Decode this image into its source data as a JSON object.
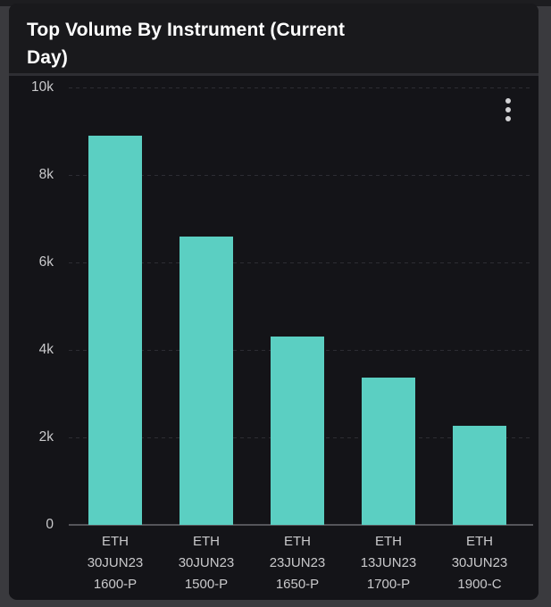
{
  "panel": {
    "title": "Top Volume By Instrument (Current Day)"
  },
  "icons": {
    "menu": "kebab-menu-icon"
  },
  "chart_data": {
    "type": "bar",
    "title": "Top Volume By Instrument (Current Day)",
    "categories": [
      "ETH 30JUN23 1600-P",
      "ETH 30JUN23 1500-P",
      "ETH 23JUN23 1650-P",
      "ETH 13JUN23 1700-P",
      "ETH 30JUN23 1900-C"
    ],
    "category_lines": [
      [
        "ETH",
        "30JUN23",
        "1600-P"
      ],
      [
        "ETH",
        "30JUN23",
        "1500-P"
      ],
      [
        "ETH",
        "23JUN23",
        "1650-P"
      ],
      [
        "ETH",
        "13JUN23",
        "1700-P"
      ],
      [
        "ETH",
        "30JUN23",
        "1900-C"
      ]
    ],
    "values": [
      8900,
      6600,
      4310,
      3370,
      2270
    ],
    "xlabel": "",
    "ylabel": "",
    "ylim": [
      0,
      10000
    ],
    "yticks": [
      10000,
      8000,
      6000,
      4000,
      2000,
      0
    ],
    "ytick_labels": [
      "10k",
      "8k",
      "6k",
      "4k",
      "2k",
      "0"
    ],
    "grid": "horizontal-dashed",
    "legend": false,
    "colors": {
      "bar": "#5bcfc2",
      "grid": "#2d2d33",
      "axis": "#55555a",
      "tick_text": "#c9c9cb",
      "title_text": "#ffffff",
      "panel_bg": "#141418",
      "header_bg": "#19191c",
      "page_bg": "#3a3a3e"
    }
  }
}
